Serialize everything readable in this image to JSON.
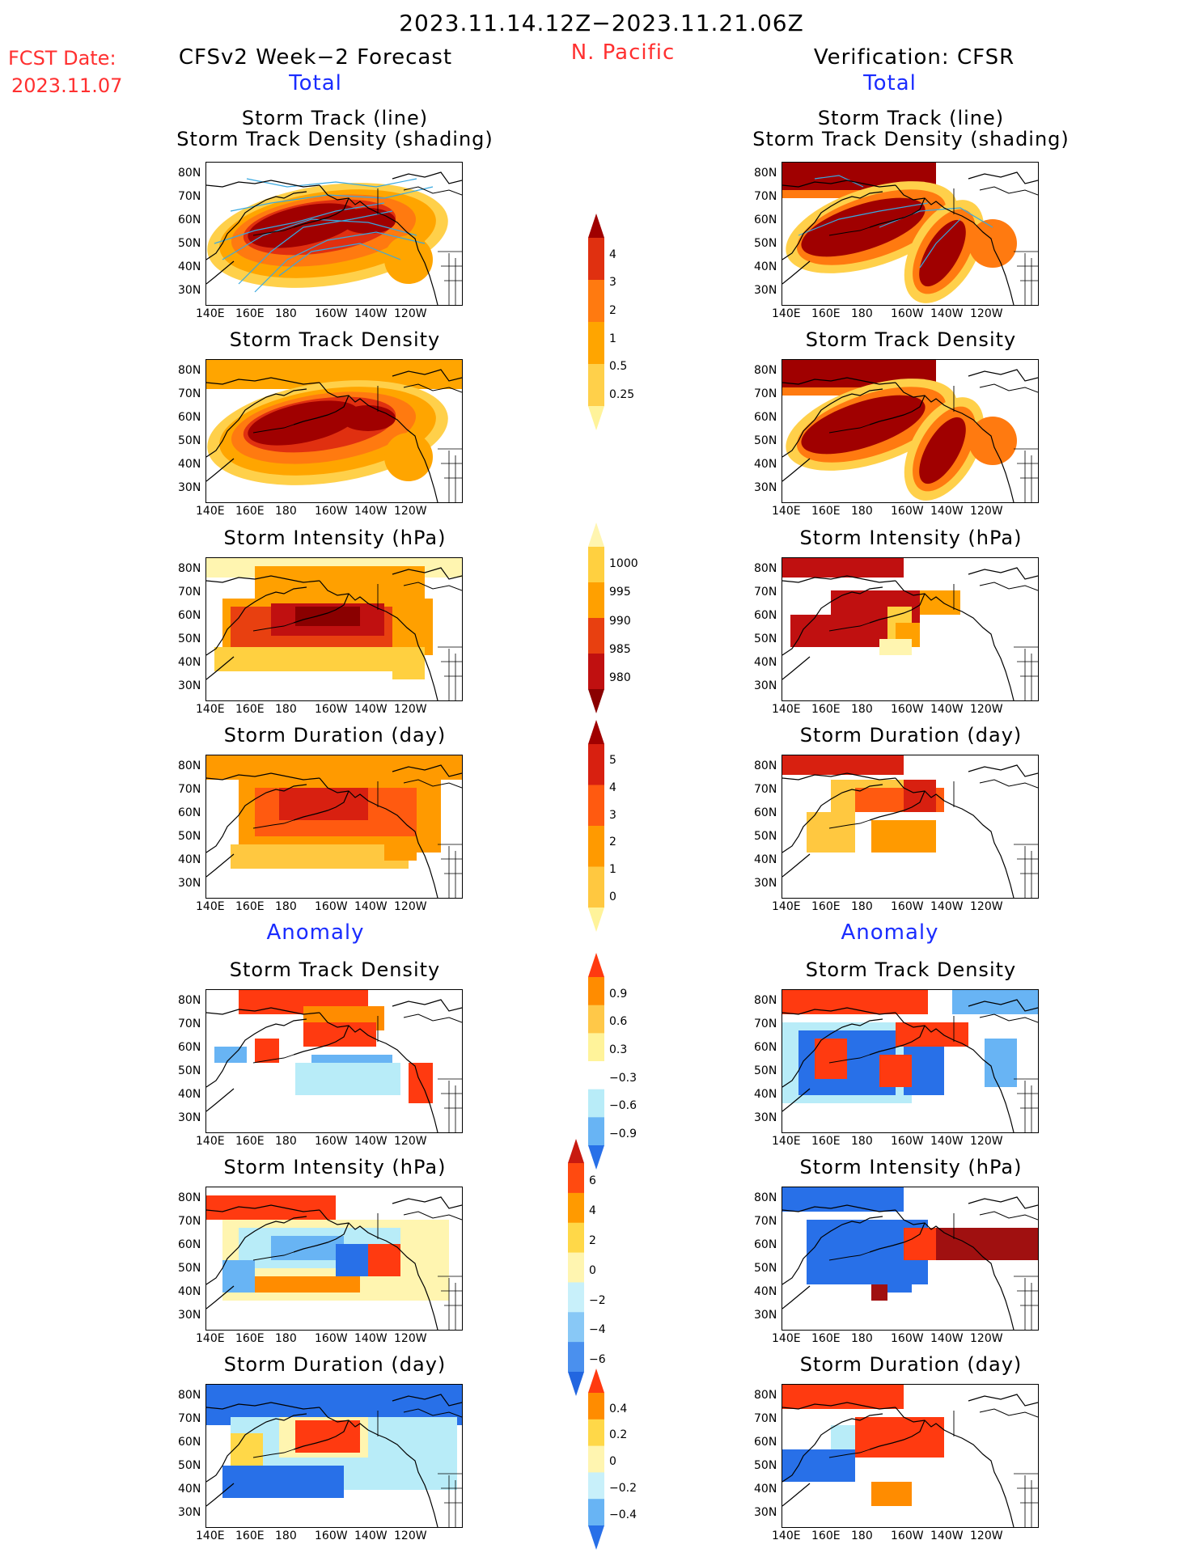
{
  "header": {
    "date_range": "2023.11.14.12Z−2023.11.21.06Z",
    "fcst_label": "FCST Date:",
    "fcst_date": "2023.11.07",
    "region": "N. Pacific",
    "left_title": "CFSv2 Week−2 Forecast",
    "right_title": "Verification: CFSR"
  },
  "sections": {
    "total": "Total",
    "anomaly": "Anomaly"
  },
  "panel_titles": {
    "track_line": "Storm Track (line)",
    "track_shading": "Storm Track Density (shading)",
    "density": "Storm Track Density",
    "intensity": "Storm Intensity (hPa)",
    "duration": "Storm Duration (day)"
  },
  "axes": {
    "lat_labels": [
      "80N",
      "70N",
      "60N",
      "50N",
      "40N",
      "30N"
    ],
    "lon_labels": [
      "140E",
      "160E",
      "180",
      "160W",
      "140W",
      "120W"
    ]
  },
  "colorbars": {
    "density_total": {
      "labels": [
        "4",
        "3",
        "2",
        "1",
        "0.5",
        "0.25"
      ],
      "colors": [
        "#a00000",
        "#e03010",
        "#ff7a10",
        "#ffa500",
        "#ffd04a",
        "#fff39a"
      ]
    },
    "intensity_total": {
      "labels": [
        "1000",
        "995",
        "990",
        "985",
        "980"
      ],
      "colors": [
        "#fff5b0",
        "#ffd040",
        "#ffa000",
        "#e84010",
        "#c01010",
        "#8a0000"
      ]
    },
    "duration_total": {
      "labels": [
        "5",
        "4",
        "3",
        "2",
        "1",
        "0"
      ],
      "colors": [
        "#a00000",
        "#d82010",
        "#ff5a10",
        "#ff9a00",
        "#ffc840",
        "#fff39a"
      ]
    },
    "density_anom": {
      "labels": [
        "0.9",
        "0.6",
        "0.3",
        "−0.3",
        "−0.6",
        "−0.9"
      ],
      "colors": [
        "#ff3a10",
        "#ff8c00",
        "#ffc848",
        "#fff39a",
        "#ffffff",
        "#b8ecf8",
        "#68b4f4",
        "#2870e8"
      ]
    },
    "intensity_anom": {
      "labels": [
        "6",
        "4",
        "2",
        "0",
        "−2",
        "−4",
        "−6"
      ],
      "colors": [
        "#c81a10",
        "#ff4a10",
        "#ff9a00",
        "#ffd848",
        "#fff5b0",
        "#c8f0fa",
        "#88c8f6",
        "#4a90ee",
        "#2266e0"
      ]
    },
    "duration_anom": {
      "labels": [
        "0.4",
        "0.2",
        "0",
        "−0.2",
        "−0.4"
      ],
      "colors": [
        "#ff3a10",
        "#ff8c00",
        "#ffd848",
        "#fff5b0",
        "#c8f0fa",
        "#68b4f4",
        "#2870e8"
      ]
    }
  }
}
